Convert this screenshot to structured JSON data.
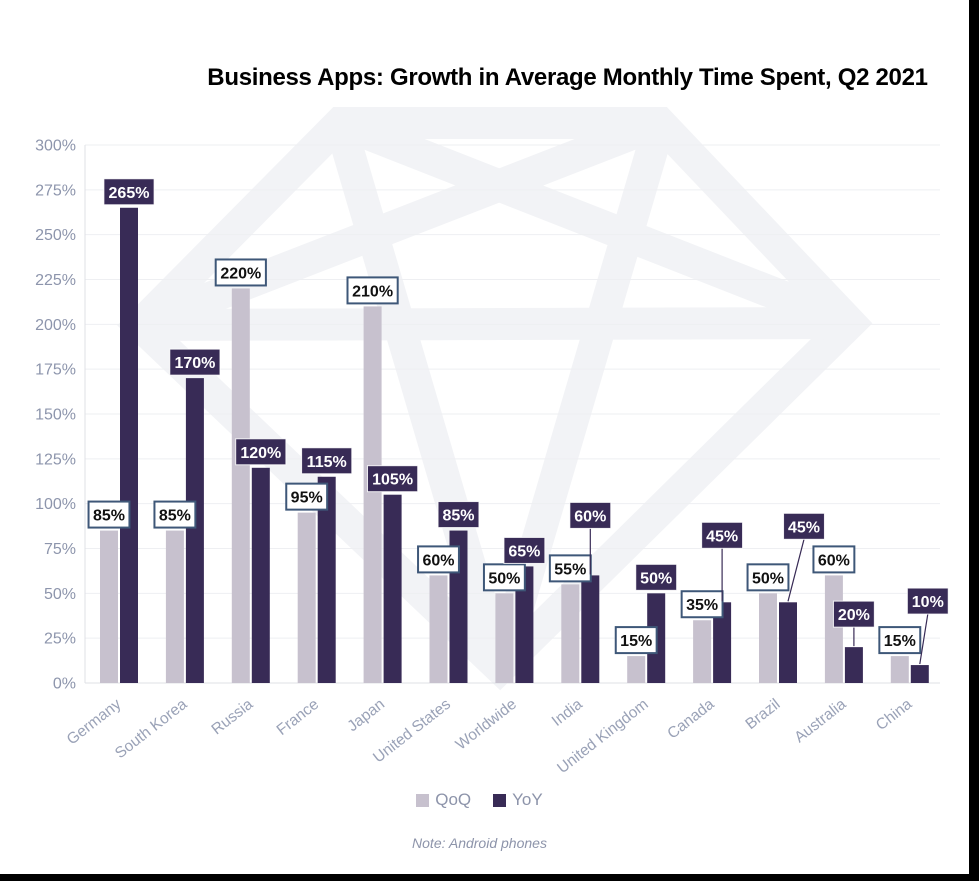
{
  "title": "Business Apps: Growth in Average Monthly Time Spent, Q2 2021",
  "note": "Note: Android phones",
  "colors": {
    "qoq_bar": "#c7c1ce",
    "yoy_bar": "#382b56",
    "qoq_label_border": "#3e5778",
    "qoq_label_text": "#111111",
    "yoy_label_bg": "#382b56",
    "yoy_label_text": "#ffffff",
    "axis_tick_text": "#8d95ac",
    "category_text": "#9aa2b7",
    "gridline": "#eeeff2",
    "baseline": "#dfe0e6",
    "watermark": "#f2f3f6",
    "title_text": "#000000"
  },
  "chart_data": {
    "type": "bar",
    "title": "Business Apps: Growth in Average Monthly Time Spent, Q2 2021",
    "note": "Note: Android phones",
    "categories": [
      "Germany",
      "South Korea",
      "Russia",
      "France",
      "Japan",
      "United States",
      "Worldwide",
      "India",
      "United Kingdom",
      "Canada",
      "Brazil",
      "Australia",
      "China"
    ],
    "series": [
      {
        "name": "QoQ",
        "color": "#c7c1ce",
        "values": [
          85,
          85,
          220,
          95,
          210,
          60,
          50,
          55,
          15,
          35,
          50,
          60,
          15
        ]
      },
      {
        "name": "YoY",
        "color": "#382b56",
        "values": [
          265,
          170,
          120,
          115,
          105,
          85,
          65,
          60,
          50,
          45,
          45,
          20,
          10
        ]
      }
    ],
    "value_label_format": "percent",
    "xlabel": "",
    "ylabel": "",
    "ylim": [
      0,
      300
    ],
    "ytick_step": 25,
    "ytick_format": "percent",
    "grid": true,
    "legend_position": "bottom",
    "category_label_angle": -38,
    "label_layout": {
      "yoy_raise": [
        0,
        0,
        0,
        0,
        0,
        0,
        0,
        44,
        0,
        51,
        60,
        17,
        48
      ],
      "yoy_dx": [
        0,
        0,
        0,
        0,
        0,
        0,
        0,
        0,
        0,
        0,
        16,
        0,
        8
      ]
    }
  }
}
